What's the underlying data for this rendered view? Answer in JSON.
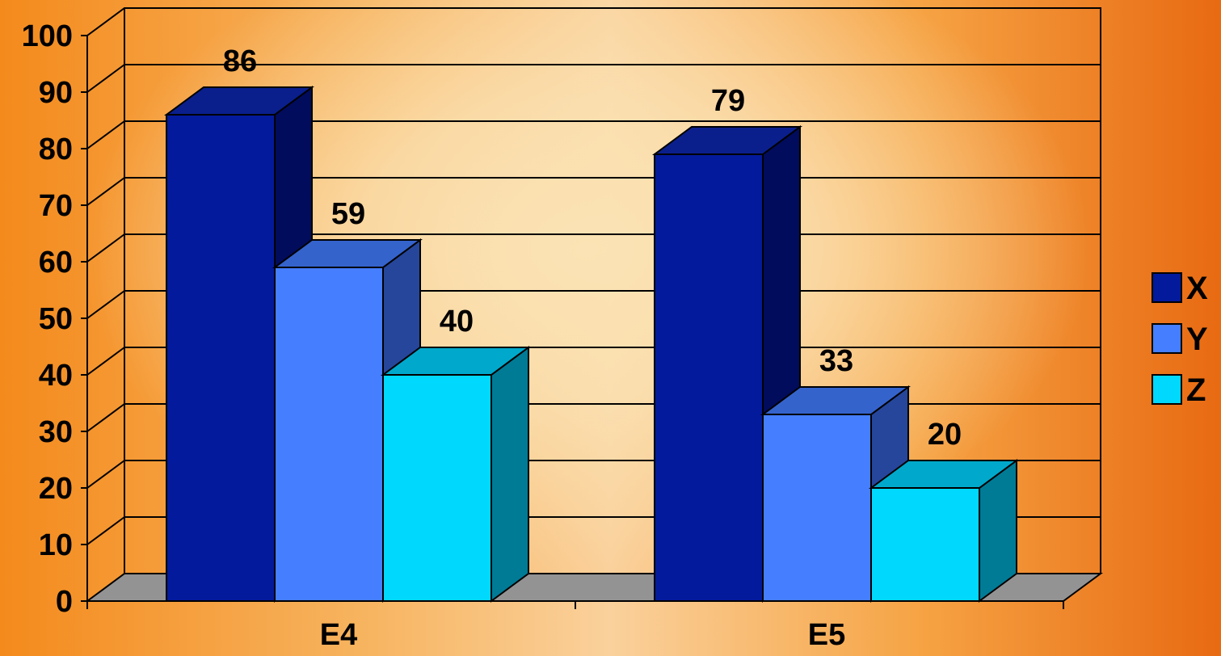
{
  "chart_data": {
    "type": "bar",
    "categories": [
      "E4",
      "E5"
    ],
    "series": [
      {
        "name": "X",
        "values": [
          86,
          79
        ],
        "color": "#041a9c",
        "top": "#0a1f8c",
        "side": "#020c5c"
      },
      {
        "name": "Y",
        "values": [
          59,
          33
        ],
        "color": "#457efe",
        "top": "#3563cc",
        "side": "#25469a"
      },
      {
        "name": "Z",
        "values": [
          40,
          20
        ],
        "color": "#00d8fe",
        "top": "#00a9cc",
        "side": "#007b96"
      }
    ],
    "yticks": [
      "0",
      "10",
      "20",
      "30",
      "40",
      "50",
      "60",
      "70",
      "80",
      "90",
      "100"
    ],
    "ylim": [
      0,
      100
    ],
    "grid": true,
    "legend": "right",
    "xlabel": "",
    "ylabel": ""
  }
}
